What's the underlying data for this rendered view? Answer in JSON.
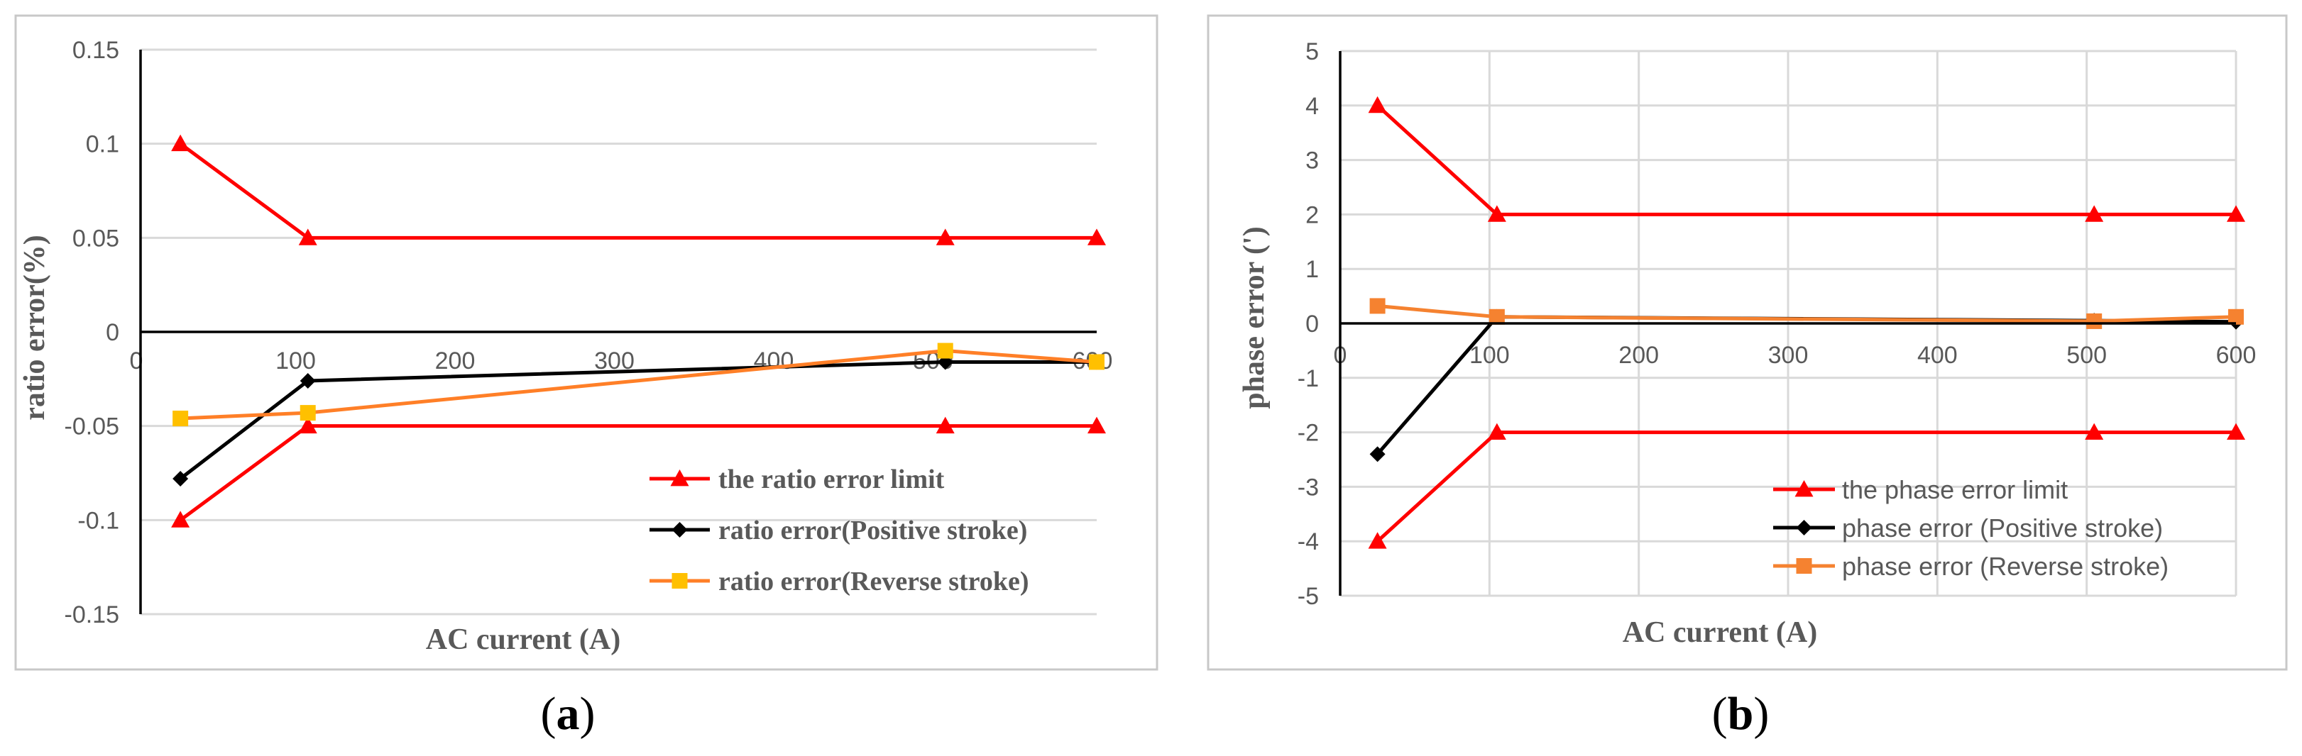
{
  "chart_data": [
    {
      "id": "a",
      "type": "line",
      "caption_letter": "a",
      "xlabel": "AC current (A)",
      "ylabel": "ratio error(%)",
      "xlim": [
        0,
        600
      ],
      "ylim": [
        -0.15,
        0.15
      ],
      "xticks": [
        0,
        100,
        200,
        300,
        400,
        500,
        600
      ],
      "yticks": [
        -0.15,
        -0.1,
        -0.05,
        0,
        0.05,
        0.1,
        0.15
      ],
      "ytick_labels": [
        "-0.15",
        "-0.1",
        "-0.05",
        "0",
        "0.05",
        "0.1",
        "0.15"
      ],
      "grid": "horizontal",
      "legend_position": "bottom-right",
      "series": [
        {
          "name": "the ratio error limit",
          "color": "#ff0000",
          "marker": "triangle",
          "segments": [
            [
              [
                25,
                0.1
              ],
              [
                105,
                0.05
              ],
              [
                505,
                0.05
              ],
              [
                600,
                0.05
              ]
            ],
            [
              [
                25,
                -0.1
              ],
              [
                105,
                -0.05
              ],
              [
                505,
                -0.05
              ],
              [
                600,
                -0.05
              ]
            ]
          ]
        },
        {
          "name": "ratio error(Positive stroke)",
          "color": "#000000",
          "marker": "diamond",
          "segments": [
            [
              [
                25,
                -0.078
              ],
              [
                105,
                -0.026
              ],
              [
                505,
                -0.016
              ],
              [
                600,
                -0.016
              ]
            ]
          ]
        },
        {
          "name": "ratio error(Reverse stroke)",
          "color": "#ffc000",
          "line_color": "#ff7f27",
          "marker": "square",
          "segments": [
            [
              [
                25,
                -0.046
              ],
              [
                105,
                -0.043
              ],
              [
                505,
                -0.01
              ],
              [
                600,
                -0.016
              ]
            ]
          ]
        }
      ]
    },
    {
      "id": "b",
      "type": "line",
      "caption_letter": "b",
      "xlabel": "AC current (A)",
      "ylabel": "phase error (')",
      "xlim": [
        0,
        600
      ],
      "ylim": [
        -5,
        5
      ],
      "xticks": [
        0,
        100,
        200,
        300,
        400,
        500,
        600
      ],
      "yticks": [
        -5,
        -4,
        -3,
        -2,
        -1,
        0,
        1,
        2,
        3,
        4,
        5
      ],
      "ytick_labels": [
        "-5",
        "-4",
        "-3",
        "-2",
        "-1",
        "0",
        "1",
        "2",
        "3",
        "4",
        "5"
      ],
      "grid": "both",
      "legend_position": "bottom-right",
      "series": [
        {
          "name": "the phase error limit",
          "color": "#ff0000",
          "marker": "triangle",
          "segments": [
            [
              [
                25,
                4
              ],
              [
                105,
                2
              ],
              [
                505,
                2
              ],
              [
                600,
                2
              ]
            ],
            [
              [
                25,
                -4
              ],
              [
                105,
                -2
              ],
              [
                505,
                -2
              ],
              [
                600,
                -2
              ]
            ]
          ]
        },
        {
          "name": "phase error (Positive stroke)",
          "color": "#000000",
          "marker": "diamond",
          "segments": [
            [
              [
                25,
                -2.4
              ],
              [
                105,
                0.12
              ],
              [
                505,
                0.05
              ],
              [
                600,
                0.03
              ]
            ]
          ]
        },
        {
          "name": "phase error (Reverse stroke)",
          "color": "#f58230",
          "marker": "square",
          "segments": [
            [
              [
                25,
                0.32
              ],
              [
                105,
                0.12
              ],
              [
                505,
                0.04
              ],
              [
                600,
                0.12
              ]
            ]
          ]
        }
      ]
    }
  ]
}
